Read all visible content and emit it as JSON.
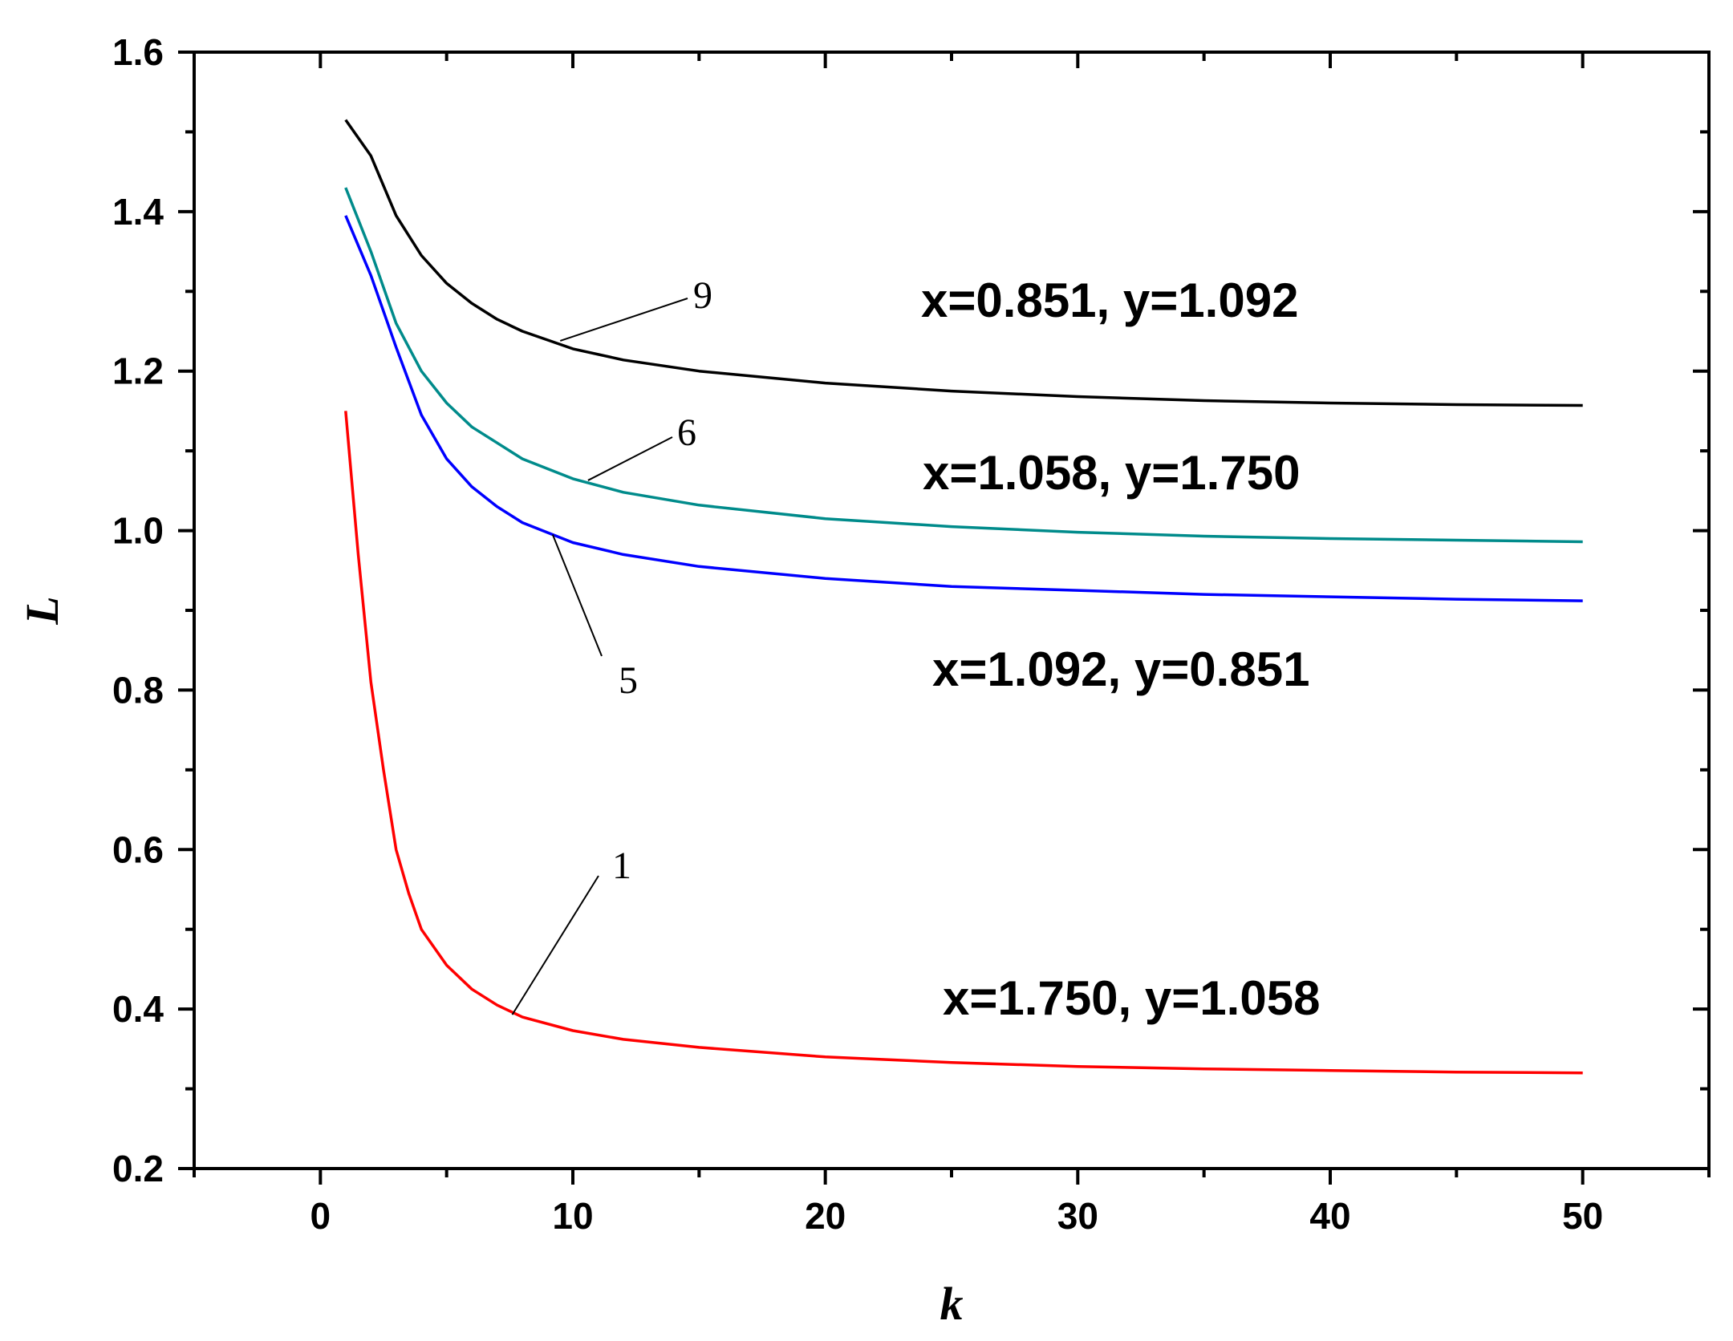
{
  "chart_data": {
    "type": "line",
    "title": "",
    "xlabel": "k",
    "ylabel": "L",
    "xlim": [
      -5,
      55
    ],
    "ylim": [
      0.2,
      1.6
    ],
    "xticks": [
      "0",
      "10",
      "20",
      "30",
      "40",
      "50"
    ],
    "yticks": [
      "0.2",
      "0.4",
      "0.6",
      "0.8",
      "1.0",
      "1.2",
      "1.4",
      "1.6"
    ],
    "grid": false,
    "series": [
      {
        "label": "9",
        "color": "#000000",
        "x": [
          1,
          2,
          3,
          4,
          5,
          6,
          7,
          8,
          10,
          12,
          15,
          20,
          25,
          30,
          35,
          40,
          45,
          50
        ],
        "y": [
          1.515,
          1.47,
          1.395,
          1.345,
          1.31,
          1.285,
          1.265,
          1.25,
          1.228,
          1.214,
          1.2,
          1.185,
          1.175,
          1.168,
          1.163,
          1.16,
          1.158,
          1.157
        ]
      },
      {
        "label": "6",
        "color": "#008b8b",
        "x": [
          1,
          2,
          3,
          4,
          5,
          6,
          7,
          8,
          10,
          12,
          15,
          20,
          25,
          30,
          35,
          40,
          45,
          50
        ],
        "y": [
          1.43,
          1.35,
          1.26,
          1.2,
          1.16,
          1.13,
          1.11,
          1.09,
          1.065,
          1.048,
          1.032,
          1.015,
          1.005,
          0.998,
          0.993,
          0.99,
          0.988,
          0.986
        ]
      },
      {
        "label": "5",
        "color": "#0000ff",
        "x": [
          1,
          2,
          3,
          4,
          5,
          6,
          7,
          8,
          10,
          12,
          15,
          20,
          25,
          30,
          35,
          40,
          45,
          50
        ],
        "y": [
          1.395,
          1.32,
          1.23,
          1.145,
          1.09,
          1.055,
          1.03,
          1.01,
          0.985,
          0.97,
          0.955,
          0.94,
          0.93,
          0.925,
          0.92,
          0.917,
          0.914,
          0.912
        ]
      },
      {
        "label": "1",
        "color": "#ff0000",
        "x": [
          1,
          1.5,
          2,
          2.5,
          3,
          3.5,
          4,
          5,
          6,
          7,
          8,
          10,
          12,
          15,
          20,
          25,
          30,
          35,
          40,
          45,
          50
        ],
        "y": [
          1.15,
          0.97,
          0.81,
          0.7,
          0.6,
          0.545,
          0.5,
          0.455,
          0.425,
          0.405,
          0.39,
          0.373,
          0.362,
          0.352,
          0.34,
          0.333,
          0.328,
          0.325,
          0.323,
          0.321,
          0.32
        ]
      }
    ],
    "annotations": [
      "x=0.851, y=1.092",
      "x=1.058, y=1.750",
      "x=1.092, y=0.851",
      "x=1.750, y=1.058"
    ]
  }
}
